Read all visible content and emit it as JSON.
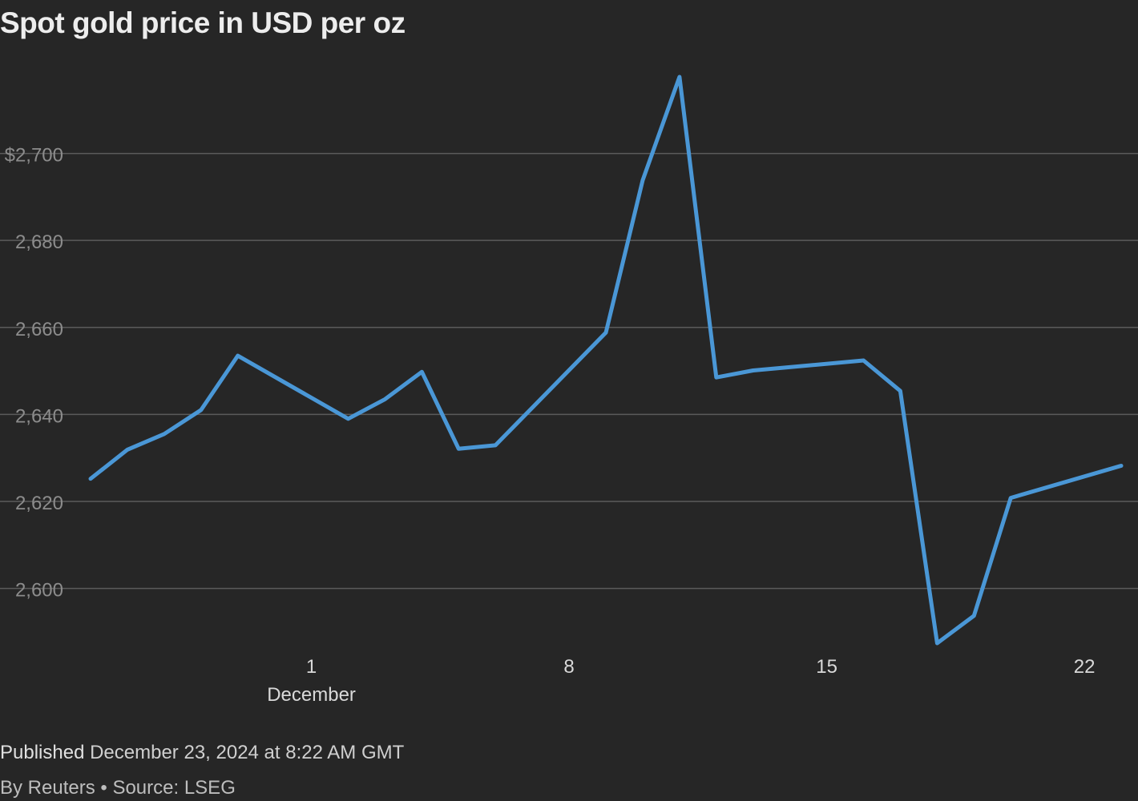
{
  "title": "Spot gold price in USD per oz",
  "footer": {
    "published_label": "Published",
    "published_date": "December 23, 2024 at 8:22 AM GMT",
    "credit": "By Reuters • Source: LSEG"
  },
  "colors": {
    "background": "#262626",
    "series": "#4a97d6"
  },
  "chart_data": {
    "type": "line",
    "title": "Spot gold price in USD per oz",
    "xlabel": "",
    "ylabel": "",
    "x": [
      "2024-11-25",
      "2024-11-26",
      "2024-11-27",
      "2024-11-28",
      "2024-11-29",
      "2024-12-02",
      "2024-12-03",
      "2024-12-04",
      "2024-12-05",
      "2024-12-06",
      "2024-12-09",
      "2024-12-10",
      "2024-12-11",
      "2024-12-12",
      "2024-12-13",
      "2024-12-16",
      "2024-12-17",
      "2024-12-18",
      "2024-12-19",
      "2024-12-20",
      "2024-12-23"
    ],
    "series": [
      {
        "values": [
          2625.2,
          2631.9,
          2635.5,
          2641.0,
          2653.5,
          2639.0,
          2643.5,
          2649.8,
          2632.1,
          2632.9,
          2658.8,
          2693.8,
          2717.6,
          2648.5,
          2650.1,
          2652.4,
          2645.4,
          2587.4,
          2593.7,
          2620.8,
          2628.2
        ]
      }
    ],
    "x_ticks": [
      {
        "date": "2024-12-01",
        "label": "1",
        "sublabel": "December"
      },
      {
        "date": "2024-12-08",
        "label": "8"
      },
      {
        "date": "2024-12-15",
        "label": "15"
      },
      {
        "date": "2024-12-22",
        "label": "22"
      }
    ],
    "y_ticks": [
      {
        "value": 2600,
        "label": "2,600"
      },
      {
        "value": 2620,
        "label": "2,620"
      },
      {
        "value": 2640,
        "label": "2,640"
      },
      {
        "value": 2660,
        "label": "2,660"
      },
      {
        "value": 2680,
        "label": "2,680"
      },
      {
        "value": 2700,
        "label": "$2,700"
      }
    ],
    "xlim": [
      "2024-11-25",
      "2024-12-23"
    ],
    "ylim": [
      2587.4,
      2717.6
    ],
    "grid": true,
    "legend": "none"
  }
}
